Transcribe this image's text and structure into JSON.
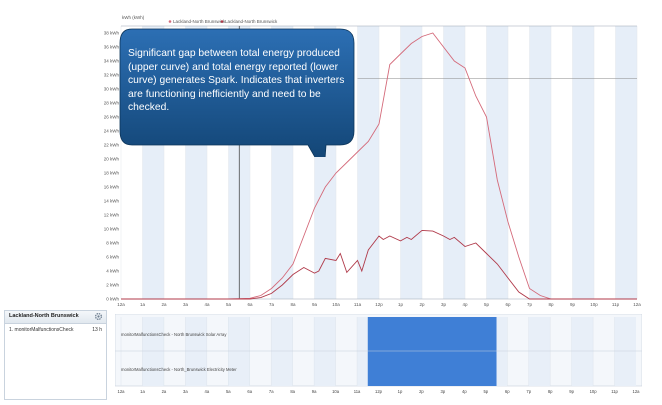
{
  "chart": {
    "y_title": "kWh (kWh)",
    "legend": [
      "Lackland-North Brunswick",
      "Lackland-North Brunswick"
    ],
    "y_ticks": [
      "0 kWh",
      "2 kWh",
      "4 kWh",
      "6 kWh",
      "8 kWh",
      "10 kWh",
      "12 kWh",
      "14 kWh",
      "16 kWh",
      "18 kWh",
      "20 kWh",
      "22 kWh",
      "24 kWh",
      "26 kWh",
      "28 kWh",
      "30 kWh",
      "32 kWh",
      "34 kWh",
      "36 kWh",
      "38 kWh"
    ],
    "x_ticks": [
      "12a",
      "1a",
      "2a",
      "3a",
      "4a",
      "5a",
      "6a",
      "7a",
      "8a",
      "9a",
      "10a",
      "11a",
      "12p",
      "1p",
      "2p",
      "3p",
      "4p",
      "5p",
      "6p",
      "7p",
      "8p",
      "9p",
      "10p",
      "11p",
      "12a"
    ],
    "colors": {
      "upper": "#d46a7a",
      "lower": "#b03a4a",
      "band": "#e6eef8",
      "grid": "#e3e7ec"
    }
  },
  "chart_data": {
    "type": "line",
    "ylim": [
      0,
      39
    ],
    "x_unit": "hour of day",
    "series": [
      {
        "name": "",
        "x": [
          0,
          5,
          6,
          6.5,
          7,
          7.5,
          8,
          8.5,
          9,
          9.5,
          10,
          10.5,
          11,
          11.5,
          12,
          12.5,
          13,
          13.5,
          14,
          14.5,
          15,
          15.5,
          16,
          16.5,
          17,
          17.5,
          18,
          18.5,
          19,
          19.5,
          20,
          24
        ],
        "y": [
          0,
          0,
          0.1,
          0.5,
          1.5,
          3,
          5,
          9,
          13,
          16,
          18,
          19.5,
          21,
          22.5,
          25,
          33.5,
          35,
          36.5,
          37.5,
          38,
          36,
          34,
          33,
          29,
          26,
          17,
          11,
          6,
          1.5,
          0.5,
          0,
          0
        ]
      },
      {
        "name": "",
        "x": [
          0,
          6,
          6.5,
          7,
          7.5,
          8,
          8.5,
          9,
          9.2,
          9.5,
          10,
          10.2,
          10.5,
          11,
          11.2,
          11.5,
          12,
          12.2,
          12.5,
          13,
          13.3,
          13.5,
          14,
          14.5,
          15,
          15.3,
          15.5,
          16,
          16.5,
          17,
          17.5,
          18,
          18.5,
          19,
          24
        ],
        "y": [
          0,
          0,
          0.2,
          0.8,
          2,
          3.5,
          4.5,
          3.7,
          4,
          5.8,
          5.5,
          6.5,
          3.8,
          5.5,
          4,
          7,
          9,
          8.5,
          9,
          8.3,
          8.8,
          8.5,
          9.8,
          9.7,
          9,
          8.5,
          8.8,
          7.5,
          8,
          6.5,
          5,
          3,
          1,
          0,
          0
        ]
      }
    ]
  },
  "callout": {
    "text": "Significant gap between total energy produced (upper curve) and total energy reported (lower curve) generates Spark. Indicates that inverters are functioning inefficiently and need to be checked."
  },
  "side_panel": {
    "title": "Lackland-North Brunswick",
    "rows": [
      {
        "label": "1. monitorMalfunctionsCheck",
        "value": "13 h"
      }
    ]
  },
  "timeline": {
    "rows": [
      "monitorMalfunctionsCheck - North Brunswick Solar Array",
      "monitorMalfunctionsCheck - North_Brunswick Electricity Meter"
    ],
    "highlight": {
      "start_hour": 11.5,
      "end_hour": 17.5
    },
    "x_ticks": [
      "12a",
      "1a",
      "2a",
      "3a",
      "4a",
      "5a",
      "6a",
      "7a",
      "8a",
      "9a",
      "10a",
      "11a",
      "12p",
      "1p",
      "2p",
      "3p",
      "4p",
      "5p",
      "6p",
      "7p",
      "8p",
      "9p",
      "10p",
      "11p",
      "12a"
    ],
    "colors": {
      "highlight": "#3f7fd6",
      "band": "#e8eff8"
    }
  }
}
